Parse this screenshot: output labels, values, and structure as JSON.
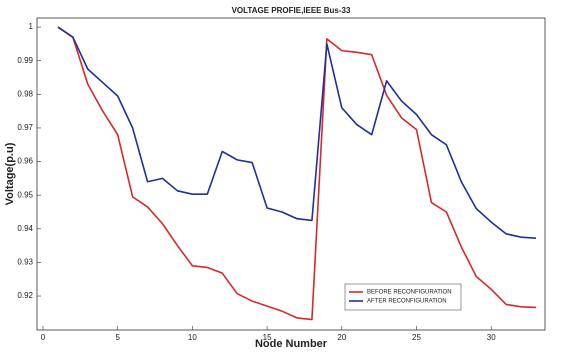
{
  "chart_data": {
    "type": "line",
    "title": "VOLTAGE PROFIE,IEEE Bus-33",
    "x_label": "Node Number",
    "y_label": "Voltage(p.u)",
    "x": [
      1,
      2,
      3,
      4,
      5,
      6,
      7,
      8,
      9,
      10,
      11,
      12,
      13,
      14,
      15,
      16,
      17,
      18,
      19,
      20,
      21,
      22,
      23,
      24,
      25,
      26,
      27,
      28,
      29,
      30,
      31,
      32,
      33
    ],
    "series": [
      {
        "name": "BEFORE RECONFIGURATION",
        "color": "#d42a2a",
        "values": [
          1.0,
          0.997,
          0.983,
          0.975,
          0.968,
          0.9495,
          0.9465,
          0.9415,
          0.935,
          0.929,
          0.9285,
          0.9268,
          0.9207,
          0.9185,
          0.917,
          0.9155,
          0.9135,
          0.913,
          0.9965,
          0.993,
          0.9925,
          0.9918,
          0.9797,
          0.973,
          0.9695,
          0.9478,
          0.945,
          0.9346,
          0.9258,
          0.922,
          0.9175,
          0.9168,
          0.9166
        ]
      },
      {
        "name": "AFTER RECONFIGURATION",
        "color": "#1f2f9e",
        "values": [
          1.0,
          0.997,
          0.9875,
          0.9835,
          0.9795,
          0.97,
          0.954,
          0.955,
          0.9513,
          0.9503,
          0.9503,
          0.963,
          0.9605,
          0.9597,
          0.9462,
          0.945,
          0.943,
          0.9425,
          0.995,
          0.976,
          0.971,
          0.968,
          0.984,
          0.978,
          0.974,
          0.968,
          0.965,
          0.954,
          0.946,
          0.942,
          0.9385,
          0.9375,
          0.9372
        ]
      }
    ],
    "xlim": [
      -0.4,
      33.6
    ],
    "xticks": [
      0,
      5,
      10,
      15,
      20,
      25,
      30
    ],
    "ylim": [
      0.9099,
      1.0027
    ],
    "yticks": [
      0.92,
      0.93,
      0.94,
      0.95,
      0.96,
      0.97,
      0.98,
      0.99,
      1
    ],
    "grid": false,
    "legend": "lower right"
  }
}
